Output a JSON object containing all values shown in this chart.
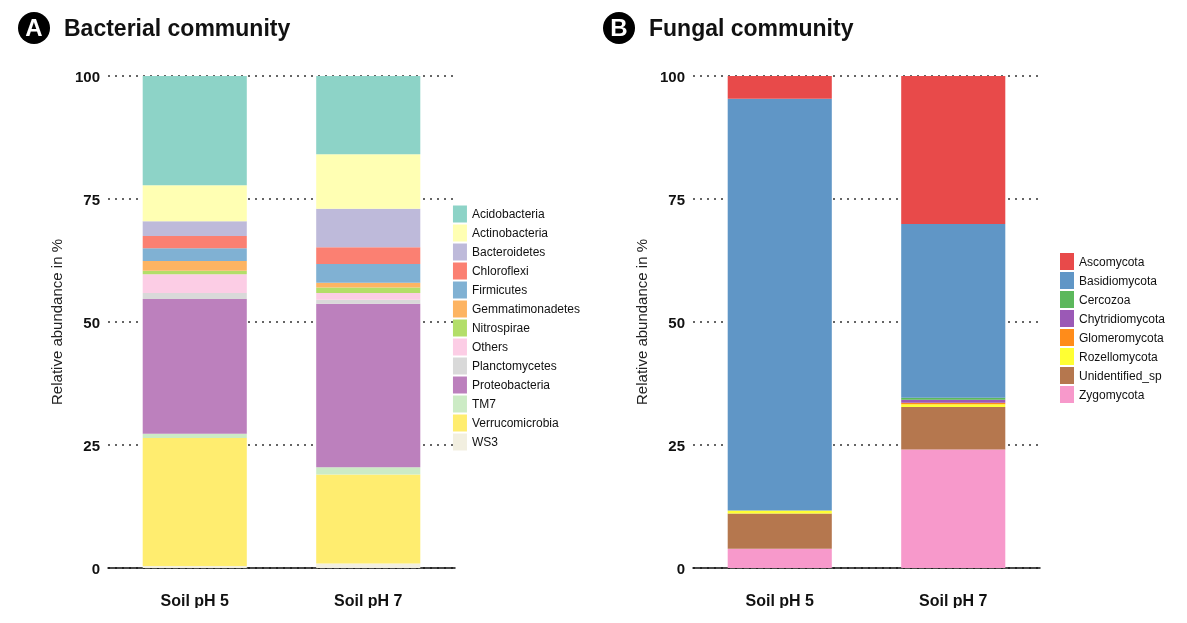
{
  "chart_data": [
    {
      "type": "bar",
      "title": "Bacterial community",
      "annotations": [
        "A"
      ],
      "ylabel": "Relative abundance in %",
      "categories": [
        "Soil pH 5",
        "Soil pH 7"
      ],
      "stacked": true,
      "ylim": [
        0,
        100
      ],
      "yticks": [
        0,
        25,
        50,
        75,
        100
      ],
      "grid": "y",
      "legend": "right",
      "series": [
        {
          "name": "WS3",
          "color": "#f2efe0",
          "values": [
            0.4,
            0.9
          ]
        },
        {
          "name": "Verrucomicrobia",
          "color": "#ffed6f",
          "values": [
            26.0,
            18.1
          ]
        },
        {
          "name": "TM7",
          "color": "#ccebc5",
          "values": [
            0.9,
            1.5
          ]
        },
        {
          "name": "Proteobacteria",
          "color": "#bc80bd",
          "values": [
            27.4,
            33.2
          ]
        },
        {
          "name": "Planctomycetes",
          "color": "#d9d9d9",
          "values": [
            1.2,
            0.8
          ]
        },
        {
          "name": "Others",
          "color": "#fccde5",
          "values": [
            3.8,
            1.4
          ]
        },
        {
          "name": "Nitrospirae",
          "color": "#b3de69",
          "values": [
            0.7,
            1.1
          ]
        },
        {
          "name": "Gemmatimonadetes",
          "color": "#fdb462",
          "values": [
            2.0,
            1.0
          ]
        },
        {
          "name": "Firmicutes",
          "color": "#80b1d3",
          "values": [
            2.6,
            3.8
          ]
        },
        {
          "name": "Chloroflexi",
          "color": "#fb8072",
          "values": [
            2.5,
            3.4
          ]
        },
        {
          "name": "Bacteroidetes",
          "color": "#bebada",
          "values": [
            3.0,
            7.8
          ]
        },
        {
          "name": "Actinobacteria",
          "color": "#ffffb3",
          "values": [
            7.3,
            11.1
          ]
        },
        {
          "name": "Acidobacteria",
          "color": "#8dd3c7",
          "values": [
            22.2,
            15.9
          ]
        }
      ]
    },
    {
      "type": "bar",
      "title": "Fungal community",
      "annotations": [
        "B"
      ],
      "ylabel": "Relative abundance in %",
      "categories": [
        "Soil pH 5",
        "Soil pH 7"
      ],
      "stacked": true,
      "ylim": [
        0,
        100
      ],
      "yticks": [
        0,
        25,
        50,
        75,
        100
      ],
      "grid": "y",
      "legend": "right",
      "series": [
        {
          "name": "Zygomycota",
          "color": "#f799cb",
          "values": [
            3.9,
            24.1
          ]
        },
        {
          "name": "Unidentified_sp",
          "color": "#b5774e",
          "values": [
            7.2,
            8.6
          ]
        },
        {
          "name": "Rozellomycota",
          "color": "#ffff33",
          "values": [
            0.6,
            0.6
          ]
        },
        {
          "name": "Glomeromycota",
          "color": "#ff8c1a",
          "values": [
            0,
            0.3
          ]
        },
        {
          "name": "Chytridiomycota",
          "color": "#9b59b6",
          "values": [
            0,
            0.6
          ]
        },
        {
          "name": "Cercozoa",
          "color": "#5cb85c",
          "values": [
            0,
            0.4
          ]
        },
        {
          "name": "Basidiomycota",
          "color": "#6096c6",
          "values": [
            83.7,
            35.3
          ]
        },
        {
          "name": "Ascomycota",
          "color": "#e84a4a",
          "values": [
            4.6,
            30.1
          ]
        }
      ]
    }
  ]
}
